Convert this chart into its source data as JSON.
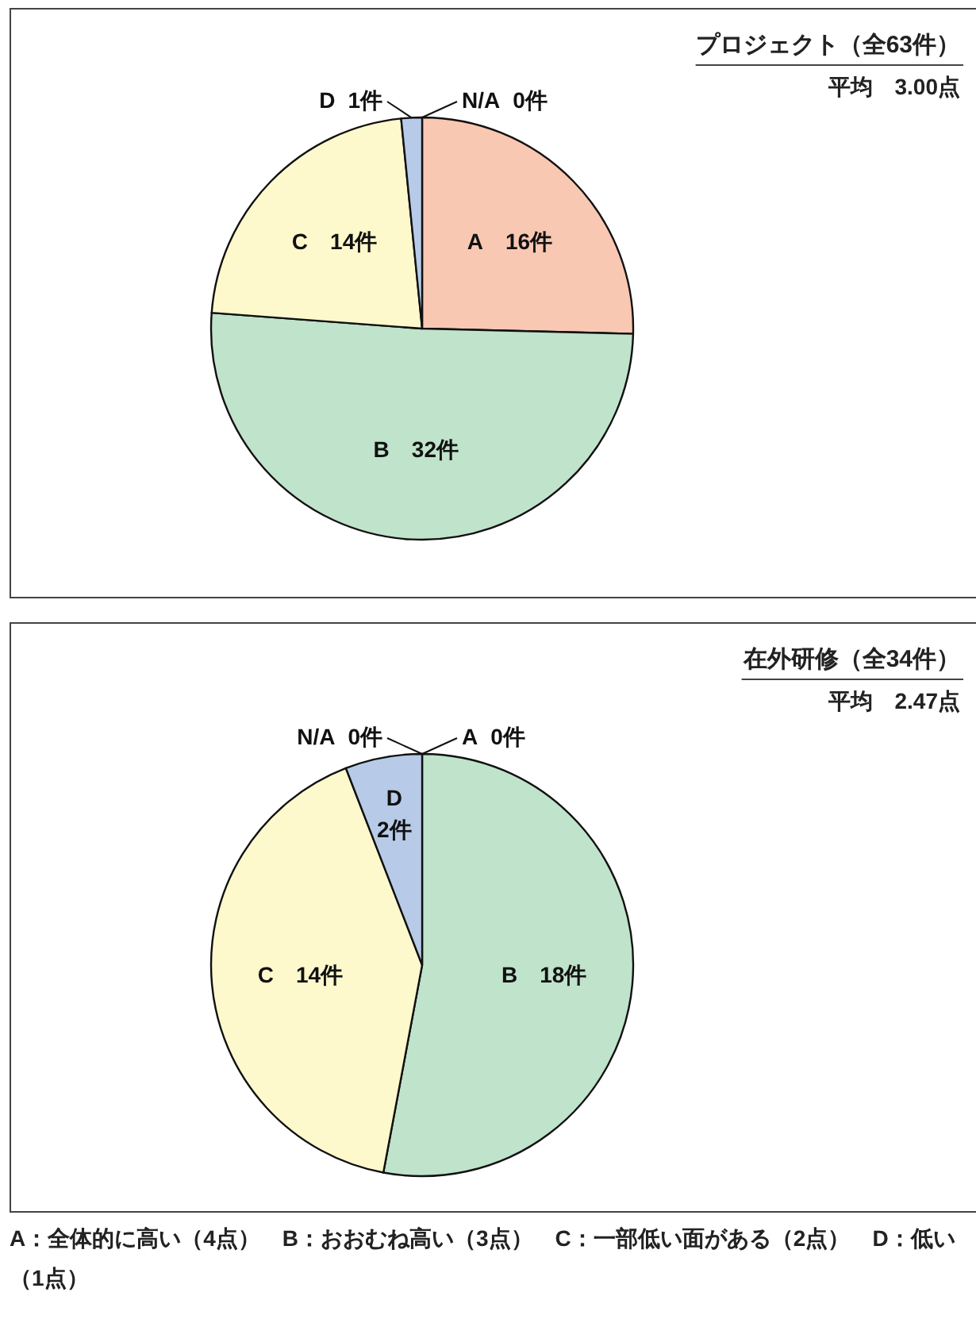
{
  "chart_data": [
    {
      "type": "pie",
      "title": "プロジェクト（全63件）",
      "subtitle": "平均　3.00点",
      "categories": [
        "A",
        "B",
        "C",
        "D",
        "N/A"
      ],
      "values": [
        16,
        32,
        14,
        1,
        0
      ],
      "value_labels": [
        "16件",
        "32件",
        "14件",
        "1件",
        "0件"
      ],
      "colors": [
        "#f9c8b2",
        "#c0e3cb",
        "#fef9cc",
        "#b7cbe8",
        null
      ]
    },
    {
      "type": "pie",
      "title": "在外研修（全34件）",
      "subtitle": "平均　2.47点",
      "categories": [
        "A",
        "B",
        "C",
        "D",
        "N/A"
      ],
      "values": [
        0,
        18,
        14,
        2,
        0
      ],
      "value_labels": [
        "0件",
        "18件",
        "14件",
        "2件",
        "0件"
      ],
      "colors": [
        null,
        "#c0e3cb",
        "#fef9cc",
        "#b7cbe8",
        null
      ],
      "annotations": [
        "A：全体的に高い（4点）　B：おおむね高い（3点）　C：一部低い面がある（2点）　D：低い（1点）"
      ]
    }
  ]
}
